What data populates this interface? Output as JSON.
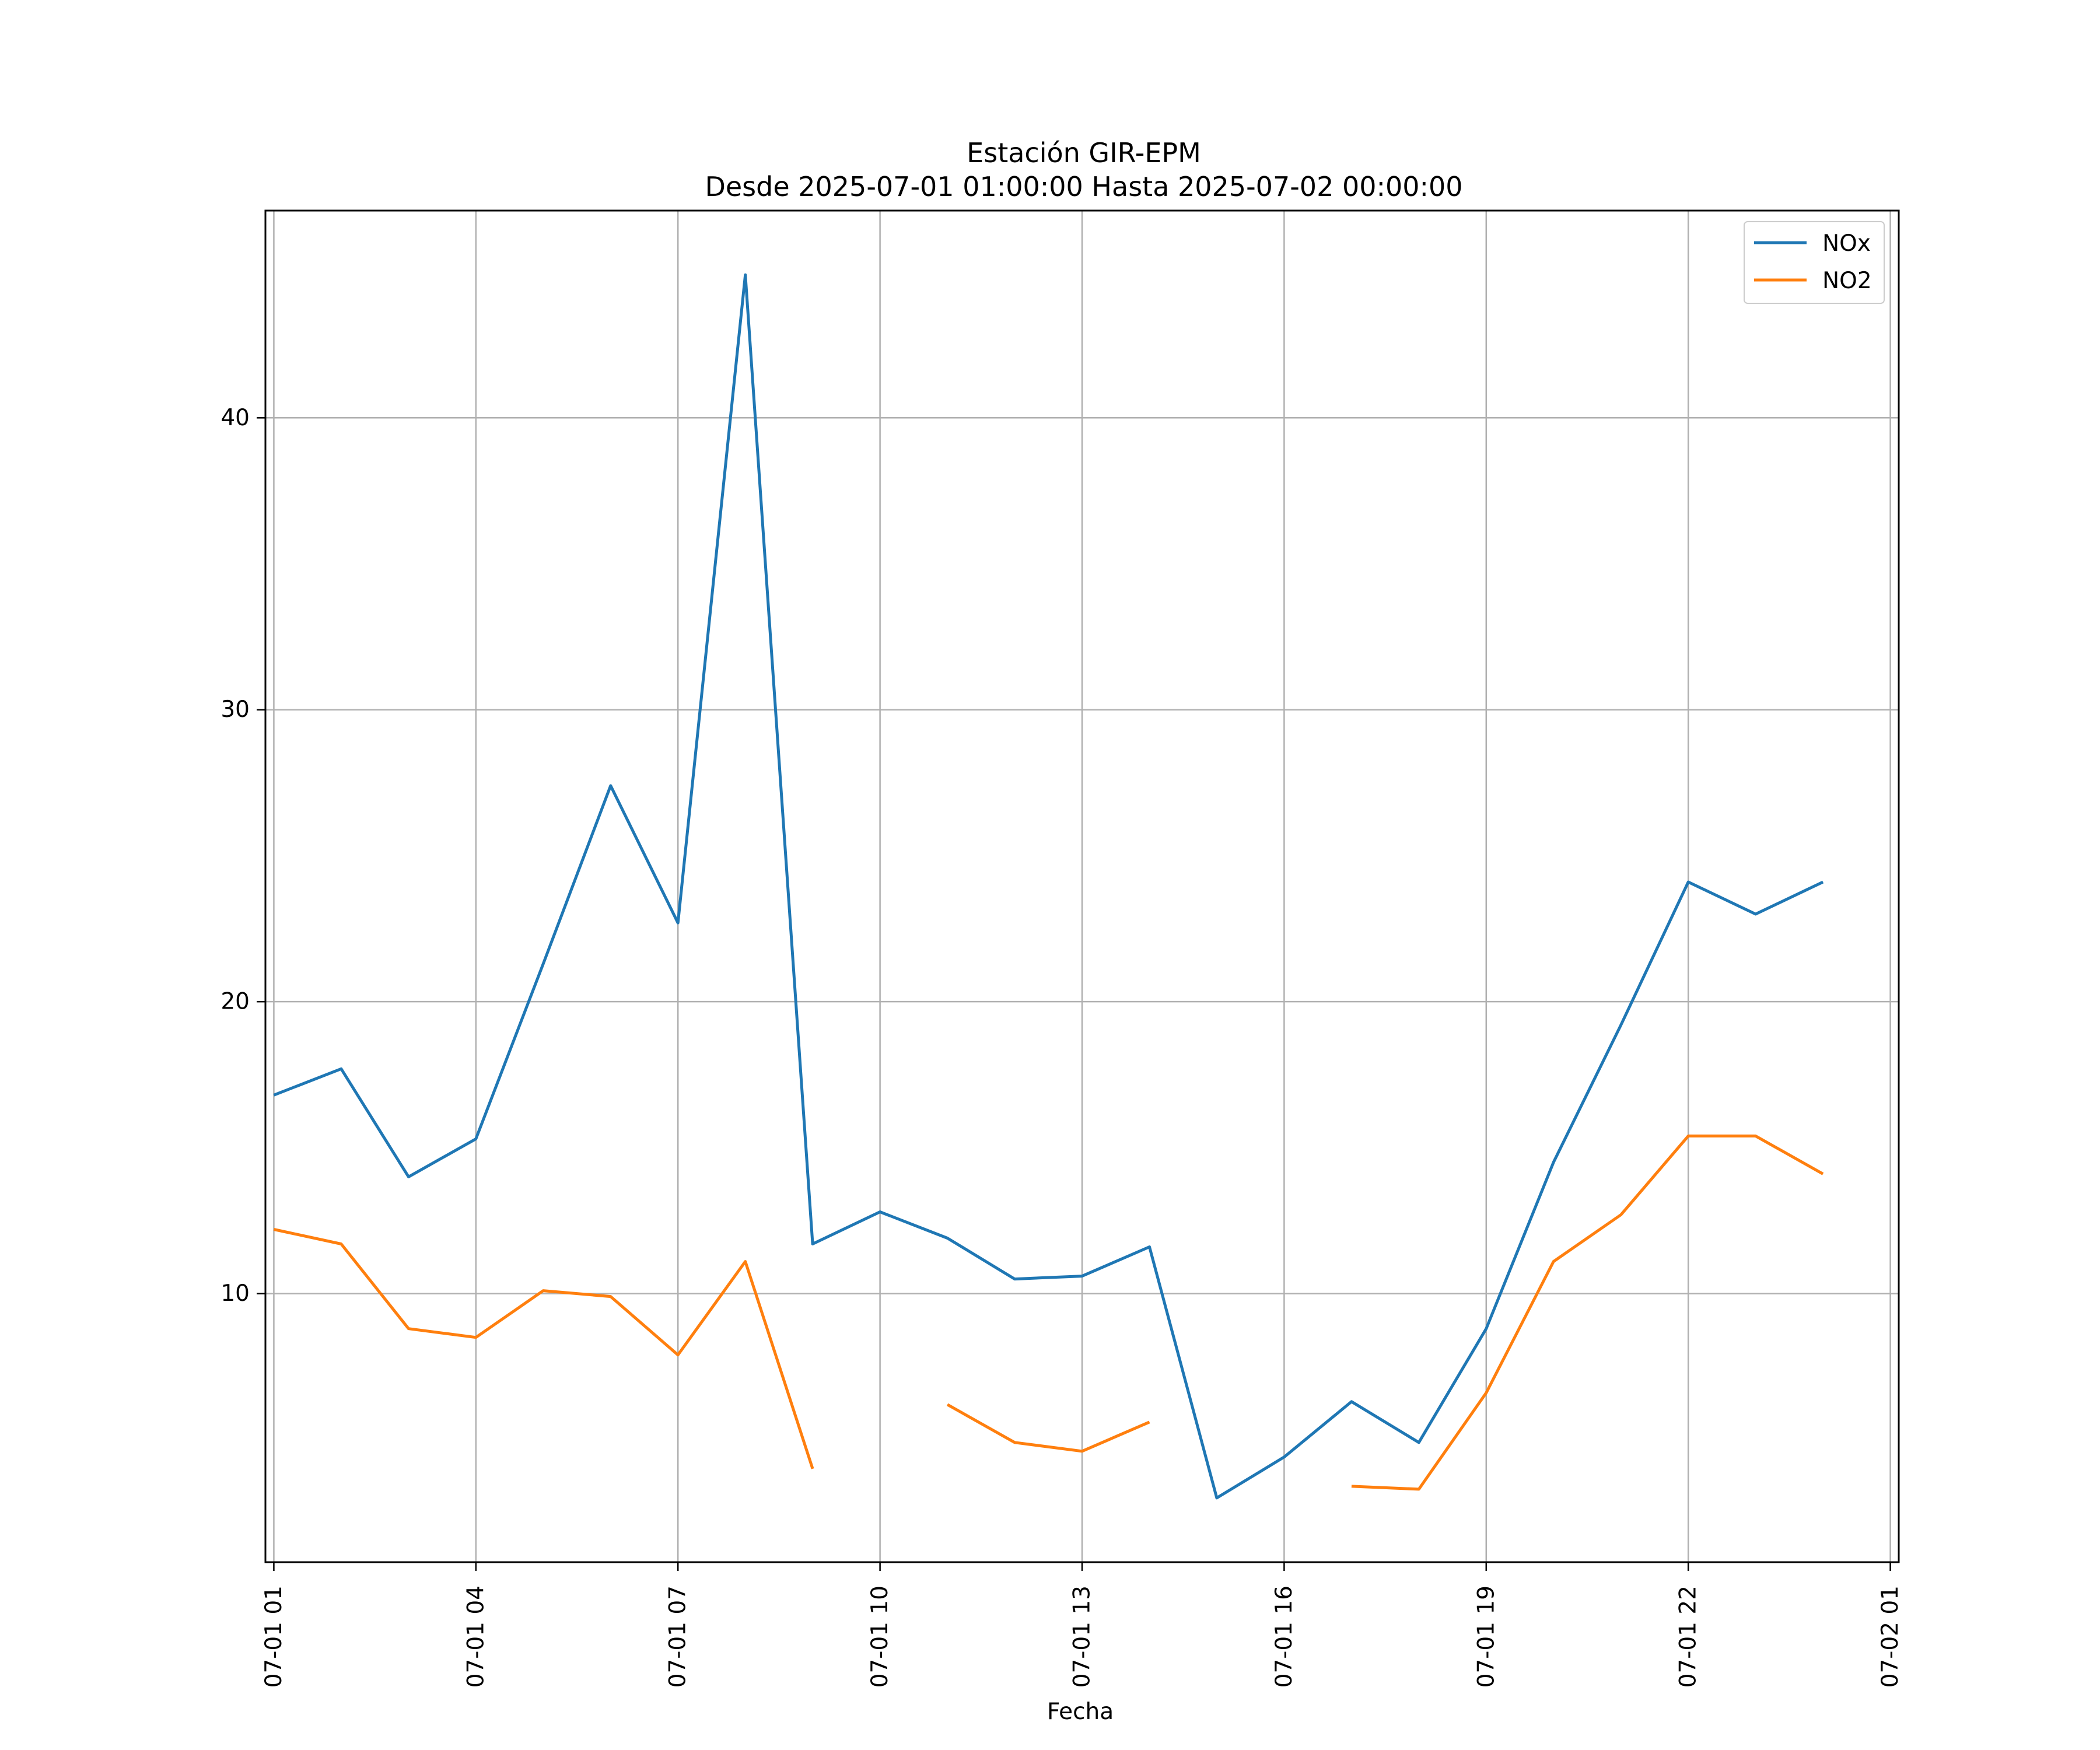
{
  "chart_data": {
    "type": "line",
    "title": "Estación GIR-EPM",
    "subtitle": "Desde 2025-07-01 01:00:00 Hasta 2025-07-02 00:00:00",
    "xlabel": "Fecha",
    "ylabel": "",
    "x": [
      "07-01 01",
      "07-01 02",
      "07-01 03",
      "07-01 04",
      "07-01 05",
      "07-01 06",
      "07-01 07",
      "07-01 08",
      "07-01 09",
      "07-01 10",
      "07-01 11",
      "07-01 12",
      "07-01 13",
      "07-01 14",
      "07-01 15",
      "07-01 16",
      "07-01 17",
      "07-01 18",
      "07-01 19",
      "07-01 20",
      "07-01 21",
      "07-01 22",
      "07-01 23",
      "07-02 00"
    ],
    "xticks": [
      "07-01 01",
      "07-01 04",
      "07-01 07",
      "07-01 10",
      "07-01 13",
      "07-01 16",
      "07-01 19",
      "07-01 22",
      "07-02 01"
    ],
    "xlim": [
      0.875,
      25.125
    ],
    "yticks": [
      10,
      20,
      30,
      40
    ],
    "ylim": [
      0.8,
      47.1
    ],
    "grid": true,
    "legend_position": "upper right",
    "series": [
      {
        "name": "NOx",
        "color": "#1f77b4",
        "values": [
          16.8,
          17.7,
          14.0,
          15.3,
          21.3,
          27.4,
          22.7,
          44.9,
          11.7,
          12.8,
          11.9,
          10.5,
          10.6,
          11.6,
          3.0,
          4.4,
          6.3,
          4.9,
          8.8,
          14.5,
          19.2,
          24.1,
          23.0,
          24.1
        ]
      },
      {
        "name": "NO2",
        "color": "#ff7f0e",
        "values": [
          12.2,
          11.7,
          8.8,
          8.5,
          10.1,
          9.9,
          7.9,
          11.1,
          4.0,
          null,
          6.2,
          4.9,
          4.6,
          5.6,
          null,
          null,
          3.4,
          3.3,
          6.6,
          11.1,
          12.7,
          15.4,
          15.4,
          14.1
        ]
      }
    ]
  }
}
